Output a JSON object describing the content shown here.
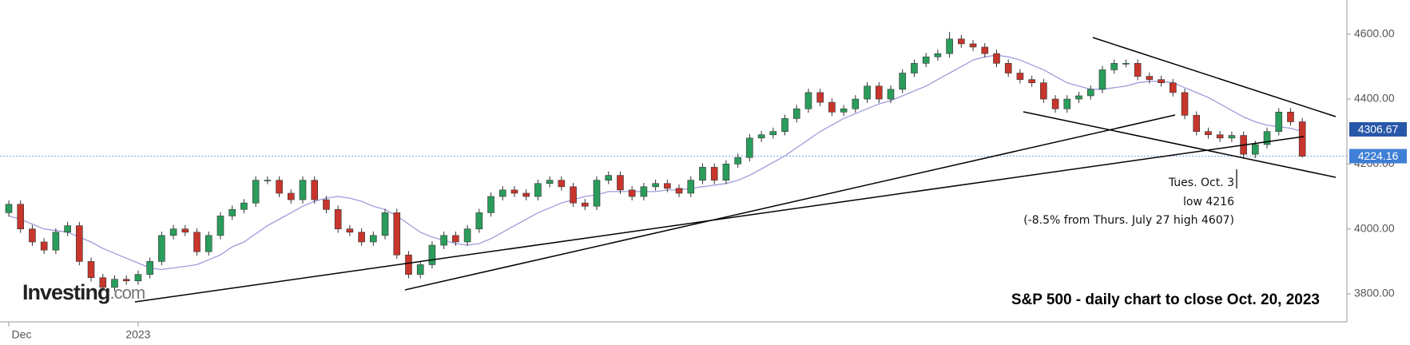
{
  "chart_data": {
    "type": "candlestick",
    "title": "S&P 500 - daily chart to close Oct. 20, 2023",
    "logo": {
      "name": "Investing",
      "suffix": ".com"
    },
    "annotations": [
      "Tues. Oct. 3",
      "low 4216",
      "(-8.5% from Thurs. July 27 high 4607)"
    ],
    "categories": [
      "Dec",
      null,
      null,
      null,
      null,
      null,
      null,
      null,
      null,
      null,
      null,
      "2023",
      null,
      null,
      null,
      null,
      null,
      null,
      null,
      null,
      null,
      null,
      null,
      null,
      null,
      null,
      null,
      null,
      null,
      null,
      null,
      null,
      null,
      null,
      null,
      null,
      null,
      null,
      null,
      null,
      null,
      null,
      null,
      null,
      null,
      null,
      null,
      null,
      null,
      null,
      null,
      null,
      null,
      null,
      null,
      null,
      null,
      null,
      null,
      null,
      null,
      null,
      null,
      null,
      null,
      null,
      null,
      null,
      null,
      null,
      null,
      null,
      null,
      null,
      null,
      null,
      null,
      null,
      null,
      null,
      null,
      null,
      null,
      null,
      null,
      null,
      null,
      null,
      null,
      null,
      null,
      null,
      null,
      null,
      null,
      null,
      null,
      null,
      null,
      null,
      null,
      null,
      null,
      null,
      null,
      null,
      null,
      null,
      null,
      null,
      null
    ],
    "open": [
      4050,
      4076,
      4000,
      3960,
      3935,
      3990,
      4010,
      3900,
      3850,
      3820,
      3845,
      3840,
      3860,
      3900,
      3980,
      4000,
      3990,
      3930,
      3980,
      4040,
      4060,
      4080,
      4150,
      4150,
      4110,
      4090,
      4150,
      4090,
      4060,
      4000,
      3990,
      3960,
      3980,
      4050,
      3920,
      3860,
      3890,
      3950,
      3980,
      3960,
      4000,
      4050,
      4100,
      4120,
      4110,
      4100,
      4140,
      4150,
      4130,
      4080,
      4070,
      4150,
      4165,
      4120,
      4100,
      4130,
      4140,
      4125,
      4110,
      4150,
      4190,
      4150,
      4200,
      4220,
      4280,
      4290,
      4300,
      4340,
      4370,
      4420,
      4390,
      4360,
      4370,
      4400,
      4440,
      4400,
      4430,
      4480,
      4510,
      4530,
      4540,
      4585,
      4570,
      4560,
      4540,
      4510,
      4480,
      4460,
      4450,
      4400,
      4370,
      4400,
      4410,
      4430,
      4490,
      4510,
      4510,
      4470,
      4460,
      4450,
      4420,
      4350,
      4300,
      4290,
      4280,
      4288,
      4230,
      4260,
      4300,
      4360,
      4330
    ],
    "high": [
      4088,
      4088,
      4012,
      3972,
      4002,
      4022,
      4022,
      3912,
      3862,
      3857,
      3857,
      3872,
      3912,
      3992,
      4012,
      4012,
      4002,
      3992,
      4052,
      4072,
      4092,
      4162,
      4162,
      4162,
      4122,
      4162,
      4162,
      4102,
      4072,
      4012,
      4002,
      3992,
      4062,
      4062,
      3932,
      3902,
      3962,
      3992,
      3992,
      4012,
      4062,
      4112,
      4132,
      4132,
      4122,
      4152,
      4162,
      4162,
      4142,
      4092,
      4162,
      4177,
      4177,
      4132,
      4142,
      4152,
      4152,
      4137,
      4162,
      4202,
      4202,
      4212,
      4232,
      4292,
      4302,
      4312,
      4352,
      4382,
      4432,
      4432,
      4402,
      4382,
      4412,
      4452,
      4452,
      4442,
      4492,
      4522,
      4542,
      4552,
      4607,
      4597,
      4582,
      4572,
      4552,
      4522,
      4492,
      4472,
      4462,
      4412,
      4412,
      4422,
      4442,
      4502,
      4522,
      4522,
      4522,
      4482,
      4472,
      4462,
      4432,
      4362,
      4312,
      4302,
      4300,
      4300,
      4272,
      4312,
      4372,
      4372,
      4342
    ],
    "low": [
      4038,
      3988,
      3948,
      3923,
      3923,
      3978,
      3888,
      3838,
      3808,
      3808,
      3828,
      3828,
      3848,
      3888,
      3968,
      3978,
      3918,
      3918,
      3968,
      4028,
      4048,
      4068,
      4138,
      4098,
      4078,
      4078,
      4078,
      4048,
      3988,
      3978,
      3948,
      3948,
      3968,
      3908,
      3848,
      3848,
      3878,
      3938,
      3948,
      3948,
      3988,
      4038,
      4088,
      4098,
      4088,
      4088,
      4128,
      4118,
      4068,
      4058,
      4058,
      4138,
      4108,
      4088,
      4088,
      4118,
      4113,
      4098,
      4098,
      4138,
      4138,
      4138,
      4188,
      4208,
      4268,
      4278,
      4288,
      4328,
      4358,
      4378,
      4348,
      4348,
      4358,
      4388,
      4388,
      4388,
      4418,
      4468,
      4498,
      4518,
      4528,
      4558,
      4548,
      4528,
      4498,
      4468,
      4448,
      4438,
      4388,
      4358,
      4358,
      4388,
      4398,
      4418,
      4478,
      4498,
      4458,
      4448,
      4438,
      4408,
      4338,
      4288,
      4278,
      4268,
      4268,
      4216,
      4218,
      4248,
      4288,
      4318,
      4220
    ],
    "close": [
      4076,
      4000,
      3960,
      3935,
      3990,
      4010,
      3900,
      3850,
      3820,
      3845,
      3840,
      3860,
      3900,
      3980,
      4000,
      3990,
      3930,
      3980,
      4040,
      4060,
      4080,
      4150,
      4150,
      4110,
      4090,
      4150,
      4090,
      4060,
      4000,
      3990,
      3960,
      3980,
      4050,
      3920,
      3860,
      3890,
      3950,
      3980,
      3960,
      4000,
      4050,
      4100,
      4120,
      4110,
      4100,
      4140,
      4150,
      4130,
      4080,
      4070,
      4150,
      4165,
      4120,
      4100,
      4130,
      4140,
      4125,
      4110,
      4150,
      4190,
      4150,
      4200,
      4220,
      4280,
      4290,
      4300,
      4340,
      4370,
      4420,
      4390,
      4360,
      4370,
      4400,
      4440,
      4400,
      4430,
      4480,
      4510,
      4530,
      4540,
      4585,
      4570,
      4560,
      4540,
      4510,
      4480,
      4460,
      4450,
      4400,
      4370,
      4400,
      4410,
      4430,
      4490,
      4510,
      4510,
      4470,
      4460,
      4450,
      4420,
      4350,
      4300,
      4290,
      4280,
      4288,
      4230,
      4260,
      4300,
      4360,
      4330,
      4224
    ],
    "up_color": "#2a9d5c",
    "down_color": "#c8352c",
    "moving_average": {
      "color": "#9d9ddc",
      "values": [
        4040,
        4030,
        4015,
        4000,
        3995,
        3990,
        3975,
        3960,
        3940,
        3925,
        3910,
        3895,
        3880,
        3875,
        3880,
        3885,
        3890,
        3905,
        3920,
        3945,
        3960,
        3985,
        4010,
        4030,
        4050,
        4070,
        4085,
        4095,
        4100,
        4095,
        4085,
        4070,
        4060,
        4040,
        4015,
        3990,
        3975,
        3965,
        3955,
        3950,
        3955,
        3970,
        3990,
        4010,
        4030,
        4050,
        4065,
        4080,
        4090,
        4100,
        4105,
        4115,
        4115,
        4115,
        4115,
        4115,
        4120,
        4120,
        4125,
        4130,
        4135,
        4140,
        4150,
        4165,
        4185,
        4205,
        4225,
        4250,
        4275,
        4300,
        4320,
        4340,
        4355,
        4370,
        4385,
        4395,
        4410,
        4425,
        4440,
        4460,
        4480,
        4500,
        4520,
        4530,
        4535,
        4530,
        4520,
        4505,
        4490,
        4470,
        4450,
        4440,
        4430,
        4430,
        4435,
        4440,
        4450,
        4455,
        4455,
        4450,
        4435,
        4420,
        4405,
        4385,
        4365,
        4345,
        4330,
        4320,
        4315,
        4310,
        4300
      ]
    },
    "price_markers": [
      {
        "value": 4306.67,
        "color": "#2757a8"
      },
      {
        "value": 4224.16,
        "color": "#3f7fd6"
      }
    ],
    "ylim": [
      3714,
      4705
    ],
    "yticks": [
      {
        "value": 3800,
        "label": "3800.00"
      },
      {
        "value": 4000,
        "label": "4000.00"
      },
      {
        "value": 4200,
        "label": "4200.00"
      },
      {
        "value": 4400,
        "label": "4400.00"
      },
      {
        "value": 4600,
        "label": "4600.00"
      }
    ]
  }
}
